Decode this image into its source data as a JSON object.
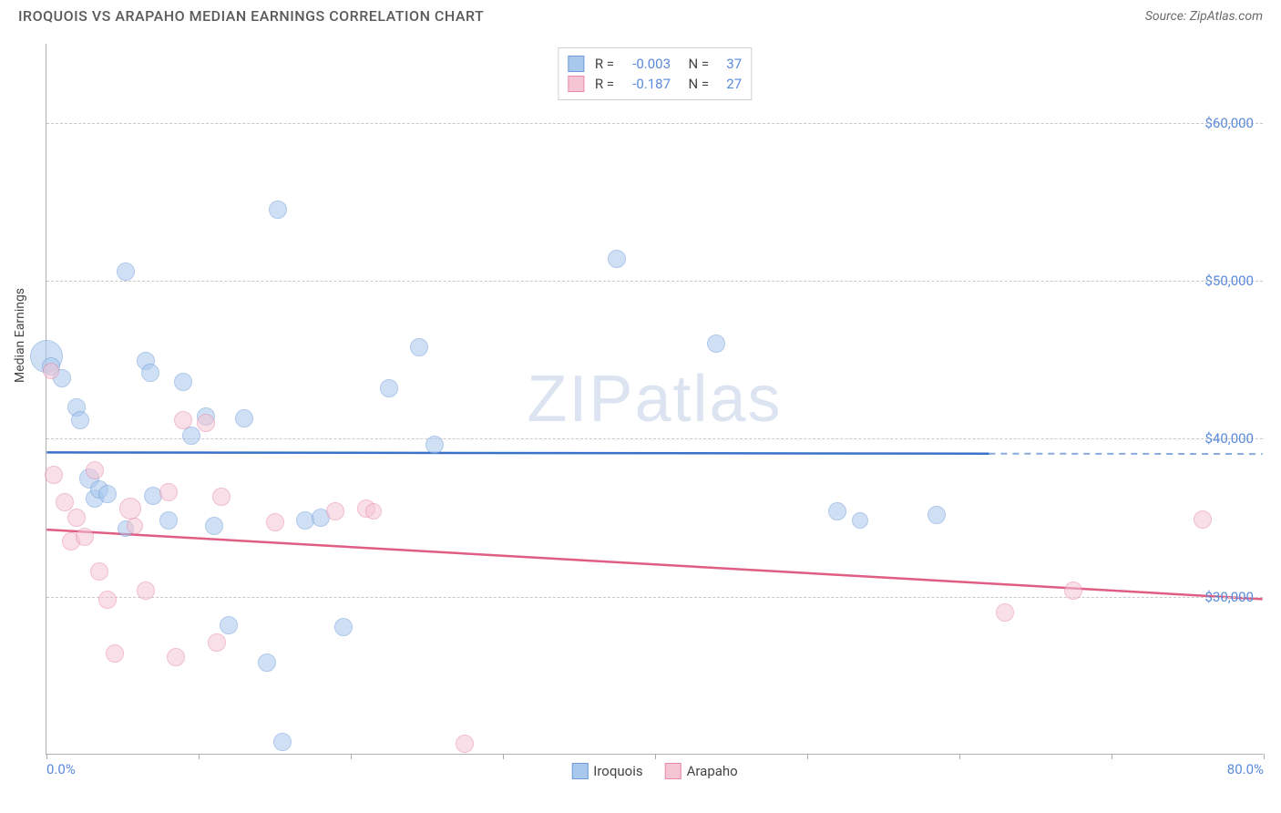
{
  "header": {
    "title": "IROQUOIS VS ARAPAHO MEDIAN EARNINGS CORRELATION CHART",
    "source": "Source: ZipAtlas.com"
  },
  "watermark": "ZIPatlas",
  "chart": {
    "type": "scatter",
    "y_axis_label": "Median Earnings",
    "xlim": [
      0,
      80
    ],
    "ylim": [
      20000,
      65000
    ],
    "x_ticks": [
      0,
      10,
      20,
      30,
      40,
      50,
      60,
      70,
      80
    ],
    "x_tick_labels_shown": {
      "0": "0.0%",
      "80": "80.0%"
    },
    "y_gridlines": [
      30000,
      40000,
      50000,
      60000
    ],
    "y_tick_labels": {
      "30000": "$30,000",
      "40000": "$40,000",
      "50000": "$50,000",
      "60000": "$60,000"
    },
    "background_color": "#ffffff",
    "grid_color": "#c8c8c8",
    "axis_color": "#b0b0b0",
    "tick_label_color": "#5a8adb",
    "series": [
      {
        "name": "Iroquois",
        "color_fill": "#a9c8ee",
        "color_stroke": "#6f9cd8",
        "trend_color": "#3a72c9",
        "fill_opacity": 0.55,
        "R": "-0.003",
        "N": "37",
        "trend": {
          "y_start": 39100,
          "y_end": 39000,
          "x_solid_end": 62,
          "x_dash_end": 80
        },
        "points": [
          {
            "x": 0.0,
            "y": 45200,
            "r": 18
          },
          {
            "x": 0.3,
            "y": 44600,
            "r": 10
          },
          {
            "x": 1.0,
            "y": 43800,
            "r": 10
          },
          {
            "x": 2.0,
            "y": 42000,
            "r": 10
          },
          {
            "x": 2.2,
            "y": 41200,
            "r": 10
          },
          {
            "x": 2.8,
            "y": 37500,
            "r": 11
          },
          {
            "x": 3.2,
            "y": 36200,
            "r": 10
          },
          {
            "x": 3.5,
            "y": 36800,
            "r": 10
          },
          {
            "x": 4.0,
            "y": 36500,
            "r": 10
          },
          {
            "x": 5.2,
            "y": 34300,
            "r": 9
          },
          {
            "x": 5.2,
            "y": 50600,
            "r": 10
          },
          {
            "x": 6.5,
            "y": 44900,
            "r": 10
          },
          {
            "x": 6.8,
            "y": 44200,
            "r": 10
          },
          {
            "x": 7.0,
            "y": 36400,
            "r": 10
          },
          {
            "x": 8.0,
            "y": 34800,
            "r": 10
          },
          {
            "x": 9.0,
            "y": 43600,
            "r": 10
          },
          {
            "x": 9.5,
            "y": 40200,
            "r": 10
          },
          {
            "x": 10.5,
            "y": 41400,
            "r": 10
          },
          {
            "x": 11.0,
            "y": 34500,
            "r": 10
          },
          {
            "x": 12.0,
            "y": 28200,
            "r": 10
          },
          {
            "x": 13.0,
            "y": 41300,
            "r": 10
          },
          {
            "x": 14.5,
            "y": 25800,
            "r": 10
          },
          {
            "x": 15.2,
            "y": 54500,
            "r": 10
          },
          {
            "x": 15.5,
            "y": 20800,
            "r": 10
          },
          {
            "x": 17.0,
            "y": 34800,
            "r": 10
          },
          {
            "x": 18.0,
            "y": 35000,
            "r": 10
          },
          {
            "x": 19.5,
            "y": 28100,
            "r": 10
          },
          {
            "x": 22.5,
            "y": 43200,
            "r": 10
          },
          {
            "x": 24.5,
            "y": 45800,
            "r": 10
          },
          {
            "x": 25.5,
            "y": 39600,
            "r": 10
          },
          {
            "x": 37.5,
            "y": 51400,
            "r": 10
          },
          {
            "x": 44.0,
            "y": 46000,
            "r": 10
          },
          {
            "x": 52.0,
            "y": 35400,
            "r": 10
          },
          {
            "x": 53.5,
            "y": 34800,
            "r": 9
          },
          {
            "x": 58.5,
            "y": 35200,
            "r": 10
          }
        ]
      },
      {
        "name": "Arapaho",
        "color_fill": "#f5c5d4",
        "color_stroke": "#e88aa8",
        "trend_color": "#e05d84",
        "fill_opacity": 0.55,
        "R": "-0.187",
        "N": "27",
        "trend": {
          "y_start": 34200,
          "y_end": 29800,
          "x_solid_end": 80,
          "x_dash_end": 80
        },
        "points": [
          {
            "x": 0.3,
            "y": 44300,
            "r": 9
          },
          {
            "x": 0.5,
            "y": 37700,
            "r": 10
          },
          {
            "x": 1.2,
            "y": 36000,
            "r": 10
          },
          {
            "x": 1.6,
            "y": 33500,
            "r": 10
          },
          {
            "x": 2.0,
            "y": 35000,
            "r": 10
          },
          {
            "x": 2.5,
            "y": 33800,
            "r": 10
          },
          {
            "x": 3.2,
            "y": 38000,
            "r": 10
          },
          {
            "x": 3.5,
            "y": 31600,
            "r": 10
          },
          {
            "x": 4.0,
            "y": 29800,
            "r": 10
          },
          {
            "x": 4.5,
            "y": 26400,
            "r": 10
          },
          {
            "x": 5.5,
            "y": 35600,
            "r": 12
          },
          {
            "x": 5.8,
            "y": 34500,
            "r": 9
          },
          {
            "x": 6.5,
            "y": 30400,
            "r": 10
          },
          {
            "x": 8.0,
            "y": 36600,
            "r": 10
          },
          {
            "x": 8.5,
            "y": 26200,
            "r": 10
          },
          {
            "x": 9.0,
            "y": 41200,
            "r": 10
          },
          {
            "x": 10.5,
            "y": 41000,
            "r": 10
          },
          {
            "x": 11.2,
            "y": 27100,
            "r": 10
          },
          {
            "x": 11.5,
            "y": 36300,
            "r": 10
          },
          {
            "x": 15.0,
            "y": 34700,
            "r": 10
          },
          {
            "x": 19.0,
            "y": 35400,
            "r": 10
          },
          {
            "x": 21.0,
            "y": 35600,
            "r": 10
          },
          {
            "x": 21.5,
            "y": 35400,
            "r": 9
          },
          {
            "x": 27.5,
            "y": 20700,
            "r": 10
          },
          {
            "x": 63.0,
            "y": 29000,
            "r": 10
          },
          {
            "x": 67.5,
            "y": 30400,
            "r": 10
          },
          {
            "x": 76.0,
            "y": 34900,
            "r": 10
          }
        ]
      }
    ]
  }
}
